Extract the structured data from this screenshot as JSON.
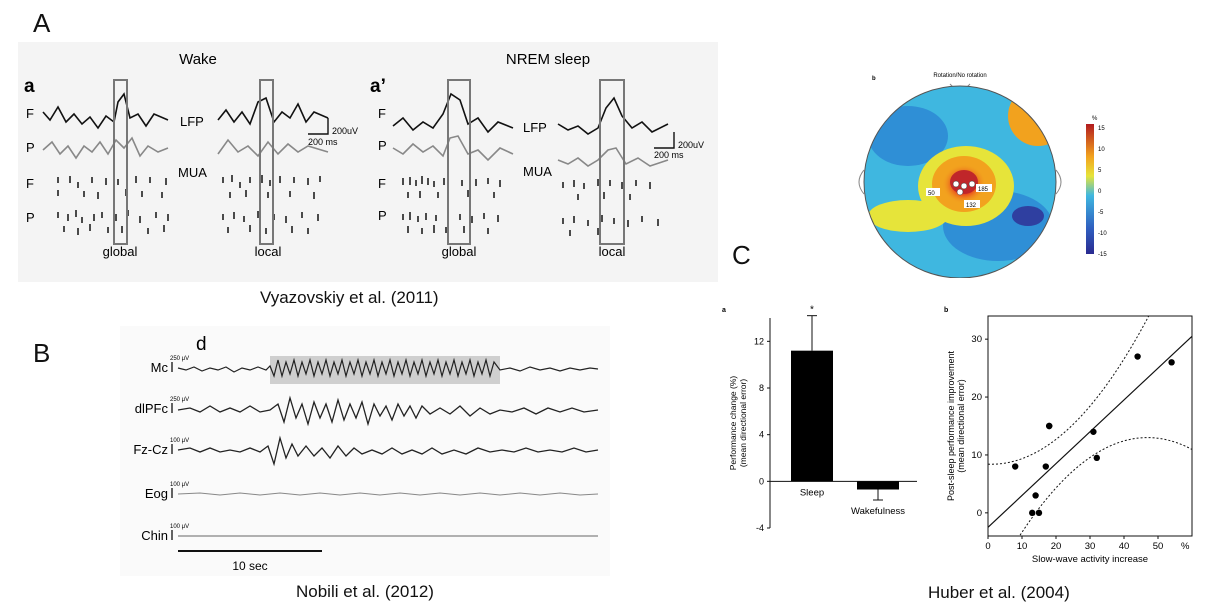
{
  "panel_a": {
    "letter": "A",
    "sub_a": "a",
    "sub_a2": "a’",
    "title_wake": "Wake",
    "title_nrem": "NREM sleep",
    "row_f": "F",
    "row_p": "P",
    "lfp": "LFP",
    "mua": "MUA",
    "scale_uv": "200uV",
    "scale_ms": "200 ms",
    "global": "global",
    "local": "local",
    "caption": "Vyazovskiy et al. (2011)"
  },
  "panel_b": {
    "letter": "B",
    "sub_d": "d",
    "channels": [
      {
        "name": "Mc",
        "scale": "250 μV"
      },
      {
        "name": "dlPFc",
        "scale": "250 μV"
      },
      {
        "name": "Fz-Cz",
        "scale": "100 μV"
      },
      {
        "name": "Eog",
        "scale": "100 μV"
      },
      {
        "name": "Chin",
        "scale": "100 μV"
      }
    ],
    "time_scale": "10 sec",
    "caption": "Nobili et al. (2012)"
  },
  "panel_c": {
    "letter": "C",
    "topo_label": "b",
    "topo_title": "Rotation/No rotation",
    "topo_values": [
      "50",
      "185",
      "132"
    ],
    "colorbar_unit": "%",
    "colorbar_ticks": [
      "15",
      "10",
      "5",
      "0",
      "-5",
      "-10",
      "-15"
    ],
    "caption": "Huber et al. (2004)",
    "colors": {
      "hot": "#c0262a",
      "cold": "#2f3fa0",
      "mid": "#3fb7e0"
    }
  },
  "chart_data": [
    {
      "type": "bar",
      "panel": "a",
      "categories": [
        "Sleep",
        "Wakefulness"
      ],
      "values": [
        11.2,
        -0.7
      ],
      "errors": [
        3.0,
        0.9
      ],
      "significance": [
        "*",
        ""
      ],
      "ylabel": "Performance change (%) (mean directional error)",
      "ylim": [
        -4,
        14
      ],
      "yticks": [
        -4,
        0,
        4,
        8,
        12
      ]
    },
    {
      "type": "scatter",
      "panel": "b",
      "x": [
        8,
        13,
        14,
        15,
        17,
        18,
        18,
        31,
        32,
        44,
        54
      ],
      "y": [
        8,
        0,
        3,
        0,
        8,
        15,
        15,
        14,
        9.5,
        27,
        26
      ],
      "xlabel": "Slow-wave activity increase",
      "ylabel": "Post-sleep performance improvement (mean directional error)",
      "xlim": [
        0,
        60
      ],
      "ylim": [
        -4,
        34
      ],
      "xticks": [
        0,
        10,
        20,
        30,
        40,
        50
      ],
      "xtick_suffix": "%",
      "yticks": [
        0,
        10,
        20,
        30
      ],
      "fit": {
        "intercept": -2.5,
        "slope": 0.55
      },
      "confidence_band": true
    }
  ]
}
